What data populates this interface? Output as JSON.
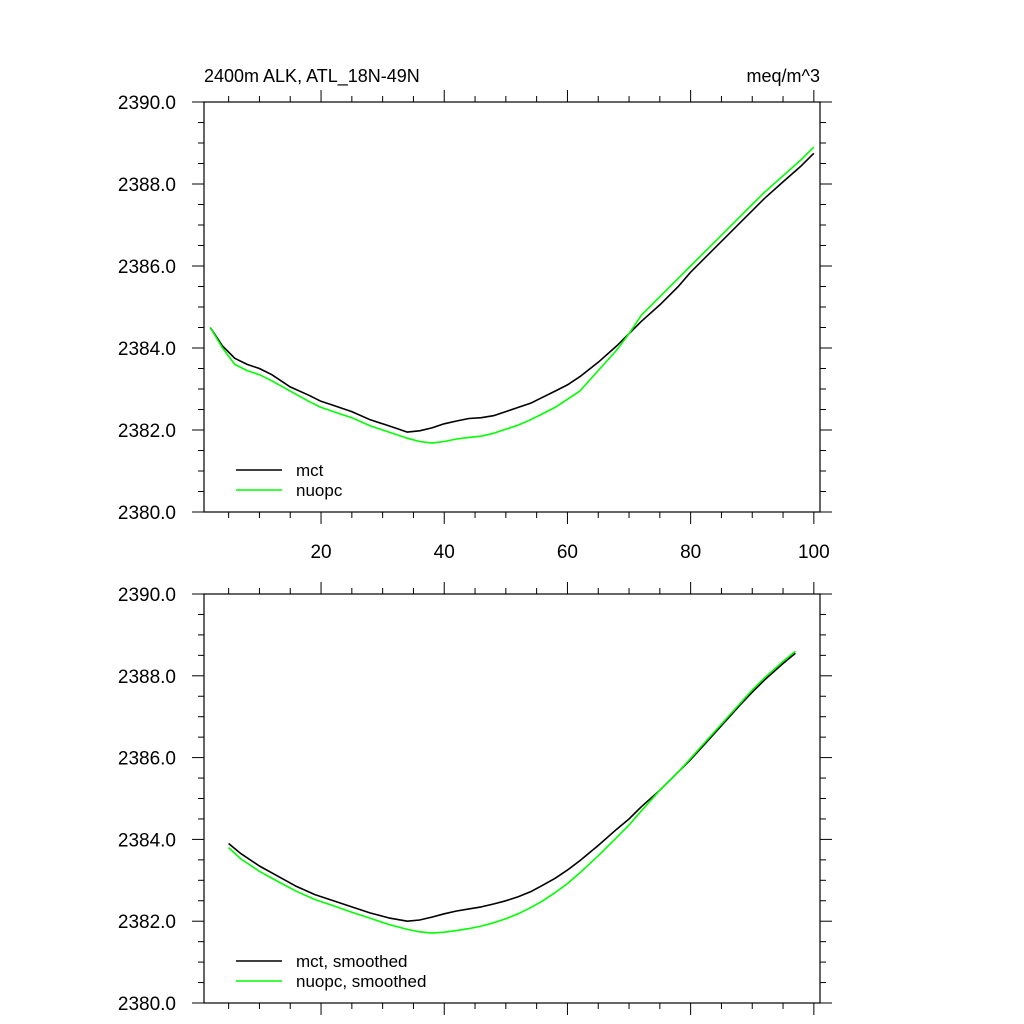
{
  "chart_data": [
    {
      "type": "line",
      "title_left": "2400m ALK, ATL_18N-49N",
      "title_right": "meq/m^3",
      "xlabel": "",
      "ylabel": "",
      "xlim": [
        1,
        101
      ],
      "ylim": [
        2380,
        2390
      ],
      "x_ticks": [
        20,
        40,
        60,
        80,
        100
      ],
      "x_tick_labels": [
        "20",
        "40",
        "60",
        "80",
        "100"
      ],
      "y_ticks": [
        2380,
        2382,
        2384,
        2386,
        2388,
        2390
      ],
      "y_tick_labels": [
        "2380.0",
        "2382.0",
        "2384.0",
        "2386.0",
        "2388.0",
        "2390.0"
      ],
      "legend_position": "bottom-left",
      "series": [
        {
          "name": "mct",
          "color": "#000000",
          "x": [
            2,
            4,
            6,
            8,
            10,
            12,
            15,
            18,
            20,
            22,
            25,
            28,
            30,
            32,
            34,
            36,
            38,
            40,
            42,
            44,
            46,
            48,
            50,
            52,
            54,
            56,
            58,
            60,
            62,
            65,
            68,
            70,
            72,
            75,
            78,
            80,
            82,
            85,
            88,
            90,
            92,
            95,
            98,
            100
          ],
          "values": [
            2384.5,
            2384.05,
            2383.75,
            2383.6,
            2383.5,
            2383.35,
            2383.05,
            2382.85,
            2382.7,
            2382.6,
            2382.45,
            2382.25,
            2382.15,
            2382.05,
            2381.95,
            2381.98,
            2382.05,
            2382.15,
            2382.22,
            2382.28,
            2382.3,
            2382.35,
            2382.45,
            2382.55,
            2382.65,
            2382.8,
            2382.95,
            2383.1,
            2383.3,
            2383.65,
            2384.05,
            2384.35,
            2384.65,
            2385.05,
            2385.5,
            2385.85,
            2386.15,
            2386.6,
            2387.05,
            2387.35,
            2387.65,
            2388.05,
            2388.45,
            2388.75
          ]
        },
        {
          "name": "nuopc",
          "color": "#00ff00",
          "x": [
            2,
            4,
            6,
            8,
            10,
            12,
            15,
            18,
            20,
            22,
            25,
            28,
            30,
            32,
            34,
            36,
            38,
            40,
            42,
            44,
            46,
            48,
            50,
            52,
            54,
            56,
            58,
            60,
            62,
            65,
            68,
            70,
            72,
            75,
            78,
            80,
            82,
            85,
            88,
            90,
            92,
            95,
            98,
            100
          ],
          "values": [
            2384.5,
            2384.0,
            2383.6,
            2383.45,
            2383.35,
            2383.2,
            2382.95,
            2382.7,
            2382.55,
            2382.45,
            2382.3,
            2382.1,
            2382.0,
            2381.9,
            2381.8,
            2381.72,
            2381.68,
            2381.72,
            2381.78,
            2381.82,
            2381.85,
            2381.92,
            2382.02,
            2382.12,
            2382.25,
            2382.4,
            2382.55,
            2382.75,
            2382.95,
            2383.45,
            2383.95,
            2384.35,
            2384.8,
            2385.25,
            2385.7,
            2386.0,
            2386.3,
            2386.75,
            2387.2,
            2387.5,
            2387.8,
            2388.2,
            2388.6,
            2388.9
          ]
        }
      ]
    },
    {
      "type": "line",
      "xlabel": "",
      "ylabel": "",
      "xlim": [
        1,
        101
      ],
      "ylim": [
        2380,
        2390
      ],
      "x_ticks": [
        20,
        40,
        60,
        80,
        100
      ],
      "y_ticks": [
        2380,
        2382,
        2384,
        2386,
        2388,
        2390
      ],
      "y_tick_labels": [
        "2380.0",
        "2382.0",
        "2384.0",
        "2386.0",
        "2388.0",
        "2390.0"
      ],
      "legend_position": "bottom-left",
      "series": [
        {
          "name": "mct, smoothed",
          "color": "#000000",
          "x": [
            5,
            7,
            10,
            13,
            16,
            19,
            22,
            25,
            28,
            31,
            34,
            36,
            38,
            40,
            42,
            44,
            46,
            48,
            50,
            52,
            54,
            56,
            58,
            60,
            62,
            65,
            68,
            70,
            72,
            75,
            78,
            80,
            82,
            85,
            88,
            90,
            92,
            95,
            97
          ],
          "values": [
            2383.9,
            2383.65,
            2383.35,
            2383.1,
            2382.85,
            2382.65,
            2382.5,
            2382.35,
            2382.2,
            2382.08,
            2382.0,
            2382.03,
            2382.1,
            2382.18,
            2382.25,
            2382.3,
            2382.35,
            2382.42,
            2382.5,
            2382.6,
            2382.72,
            2382.88,
            2383.05,
            2383.25,
            2383.48,
            2383.85,
            2384.25,
            2384.5,
            2384.8,
            2385.2,
            2385.65,
            2385.95,
            2386.28,
            2386.78,
            2387.28,
            2387.6,
            2387.9,
            2388.3,
            2388.55
          ]
        },
        {
          "name": "nuopc, smoothed",
          "color": "#00ff00",
          "x": [
            5,
            7,
            10,
            13,
            16,
            19,
            22,
            25,
            28,
            31,
            34,
            36,
            38,
            40,
            42,
            44,
            46,
            48,
            50,
            52,
            54,
            56,
            58,
            60,
            62,
            65,
            68,
            70,
            72,
            75,
            78,
            80,
            82,
            85,
            88,
            90,
            92,
            95,
            97
          ],
          "values": [
            2383.8,
            2383.52,
            2383.22,
            2382.97,
            2382.73,
            2382.53,
            2382.38,
            2382.22,
            2382.07,
            2381.92,
            2381.8,
            2381.74,
            2381.71,
            2381.73,
            2381.77,
            2381.82,
            2381.88,
            2381.96,
            2382.06,
            2382.18,
            2382.33,
            2382.5,
            2382.7,
            2382.92,
            2383.18,
            2383.6,
            2384.05,
            2384.35,
            2384.7,
            2385.2,
            2385.65,
            2385.98,
            2386.32,
            2386.82,
            2387.32,
            2387.65,
            2387.95,
            2388.35,
            2388.6
          ]
        }
      ]
    }
  ]
}
